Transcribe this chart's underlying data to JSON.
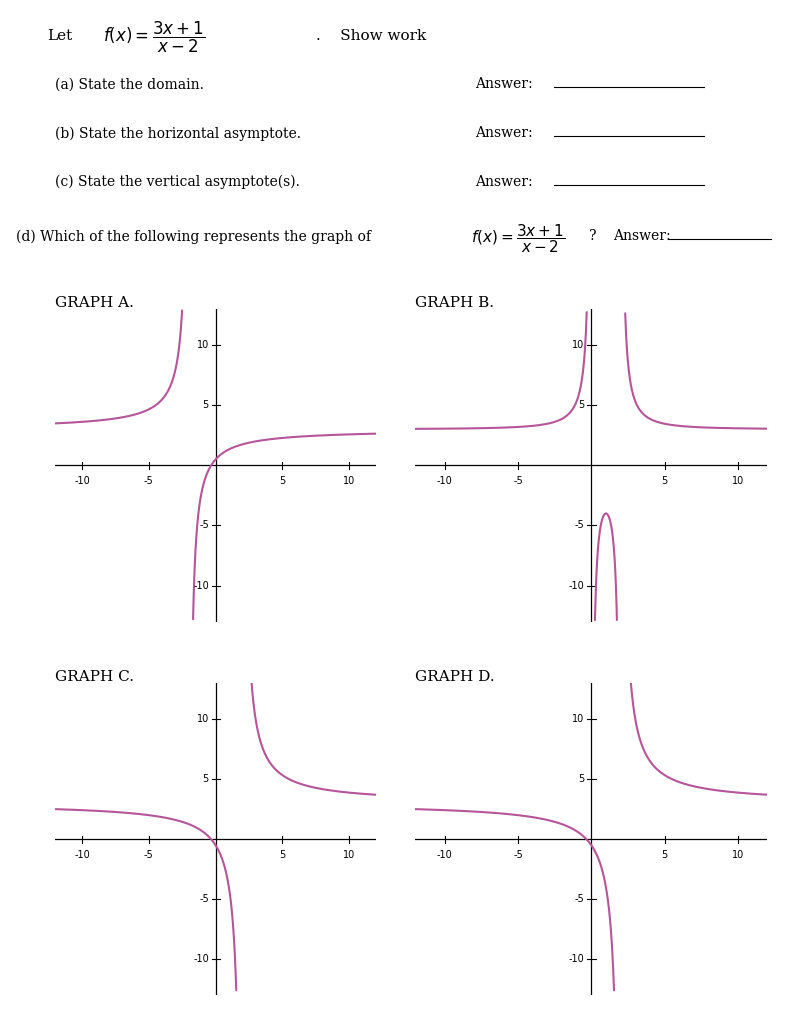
{
  "bg_color": "#ffffff",
  "grid_bg_color": "#ddeef8",
  "grid_color": "#aaccdd",
  "curve_color": "#b5559a",
  "text_color": "#000000",
  "graph_labels": [
    "GRAPH A.",
    "GRAPH B.",
    "GRAPH C.",
    "GRAPH D."
  ],
  "xlim": [
    -12,
    12
  ],
  "ylim": [
    -13,
    13
  ],
  "xticks": [
    -10,
    -5,
    5,
    10
  ],
  "yticks": [
    -10,
    -5,
    5,
    10
  ],
  "func_types": [
    "A",
    "B",
    "C",
    "D"
  ]
}
